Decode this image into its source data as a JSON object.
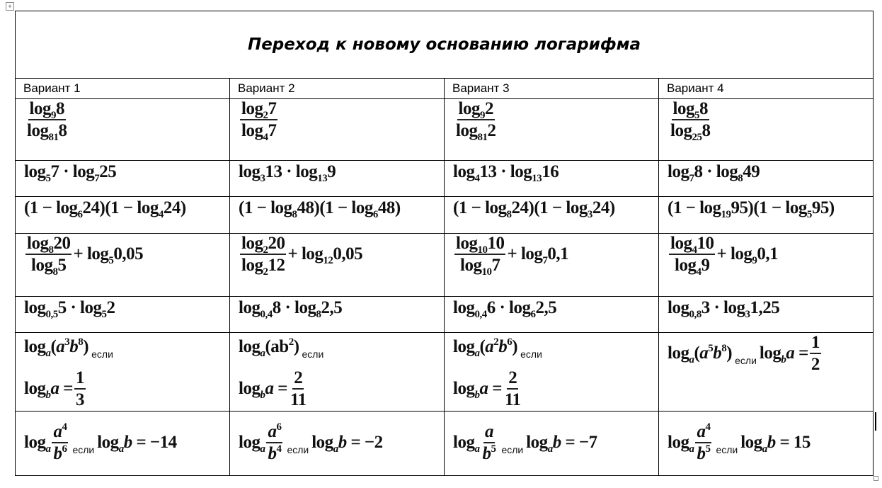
{
  "title": "Переход к новому основанию логарифма",
  "headers": [
    "Вариант 1",
    "Вариант 2",
    "Вариант 3",
    "Вариант 4"
  ],
  "rows": [
    [
      [
        {
          "frac": [
            "log_{9}8",
            "log_{81}8"
          ]
        }
      ],
      [
        {
          "frac": [
            "log_{2}7",
            "log_{4}7"
          ]
        }
      ],
      [
        {
          "frac": [
            "log_{9}2",
            "log_{81}2"
          ]
        }
      ],
      [
        {
          "frac": [
            "log_{5}8",
            "log_{25}8"
          ]
        }
      ]
    ],
    [
      [
        {
          "t": "log_{5}7 · log_{7}25"
        }
      ],
      [
        {
          "t": "log_{3}13 · log_{13}9"
        }
      ],
      [
        {
          "t": "log_{4}13 · log_{13}16"
        }
      ],
      [
        {
          "t": "log_{7}8 · log_{8}49"
        }
      ]
    ],
    [
      [
        {
          "t": "(1 − log_{6}24)(1 − log_{4}24)"
        }
      ],
      [
        {
          "t": "(1 − log_{8}48)(1 − log_{6}48)"
        }
      ],
      [
        {
          "t": "(1 − log_{8}24)(1 − log_{3}24)"
        }
      ],
      [
        {
          "t": "(1 − log_{19}95)(1 − log_{5}95)"
        }
      ]
    ],
    [
      [
        {
          "frac": [
            "log_{8}20",
            "log_{8}5"
          ]
        },
        {
          "t": "+ log_{5}0,05"
        }
      ],
      [
        {
          "frac": [
            "log_{2}20",
            "log_{2}12"
          ]
        },
        {
          "t": "+ log_{12}0,05"
        }
      ],
      [
        {
          "frac": [
            "log_{10}10",
            "log_{10}7"
          ]
        },
        {
          "t": "+ log_{7}0,1"
        }
      ],
      [
        {
          "frac": [
            "log_{4}10",
            "log_{4}9"
          ]
        },
        {
          "t": "+ log_{9}0,1"
        }
      ]
    ],
    [
      [
        {
          "t": "log_{0,5}5 · log_{5}2"
        }
      ],
      [
        {
          "t": "log_{0,4}8 · log_{8}2,5"
        }
      ],
      [
        {
          "t": "log_{0,4}6 · log_{6}2,5"
        }
      ],
      [
        {
          "t": "log_{0,8}3 · log_{3}1,25"
        }
      ]
    ],
    [
      [
        {
          "t": "log_{a}(a^{3}b^{8})"
        },
        {
          "word": "если"
        },
        {
          "br": true
        },
        {
          "t": "log_{b}a ="
        },
        {
          "frac": [
            "1",
            "3"
          ]
        }
      ],
      [
        {
          "t": "log_{a}(ab^{2})"
        },
        {
          "word": "если"
        },
        {
          "br": true
        },
        {
          "t": "log_{b}a ="
        },
        {
          "frac": [
            "2",
            "11"
          ]
        }
      ],
      [
        {
          "t": "log_{a}(a^{2}b^{6})"
        },
        {
          "word": "если"
        },
        {
          "br": true
        },
        {
          "t": "log_{b}a ="
        },
        {
          "frac": [
            "2",
            "11"
          ]
        }
      ],
      [
        {
          "t": "log_{a}(a^{5}b^{8})"
        },
        {
          "word": "если"
        },
        {
          "t": "log_{b}a ="
        },
        {
          "frac": [
            "1",
            "2"
          ]
        }
      ]
    ],
    [
      [
        {
          "t": "log_{a}"
        },
        {
          "frac": [
            "a^{4}",
            "b^{6}"
          ]
        },
        {
          "word": "если"
        },
        {
          "t": "log_{a}b = −14"
        }
      ],
      [
        {
          "t": "log_{a}"
        },
        {
          "frac": [
            "a^{6}",
            "b^{4}"
          ]
        },
        {
          "word": "если"
        },
        {
          "t": "log_{a}b = −2"
        }
      ],
      [
        {
          "t": "log_{a}"
        },
        {
          "frac": [
            "a",
            "b^{5}"
          ]
        },
        {
          "word": "если"
        },
        {
          "t": "log_{a}b = −7"
        }
      ],
      [
        {
          "t": "log_{a}"
        },
        {
          "frac": [
            "a^{4}",
            "b^{5}"
          ]
        },
        {
          "word": "если"
        },
        {
          "t": "log_{a}b = 15"
        }
      ]
    ]
  ]
}
